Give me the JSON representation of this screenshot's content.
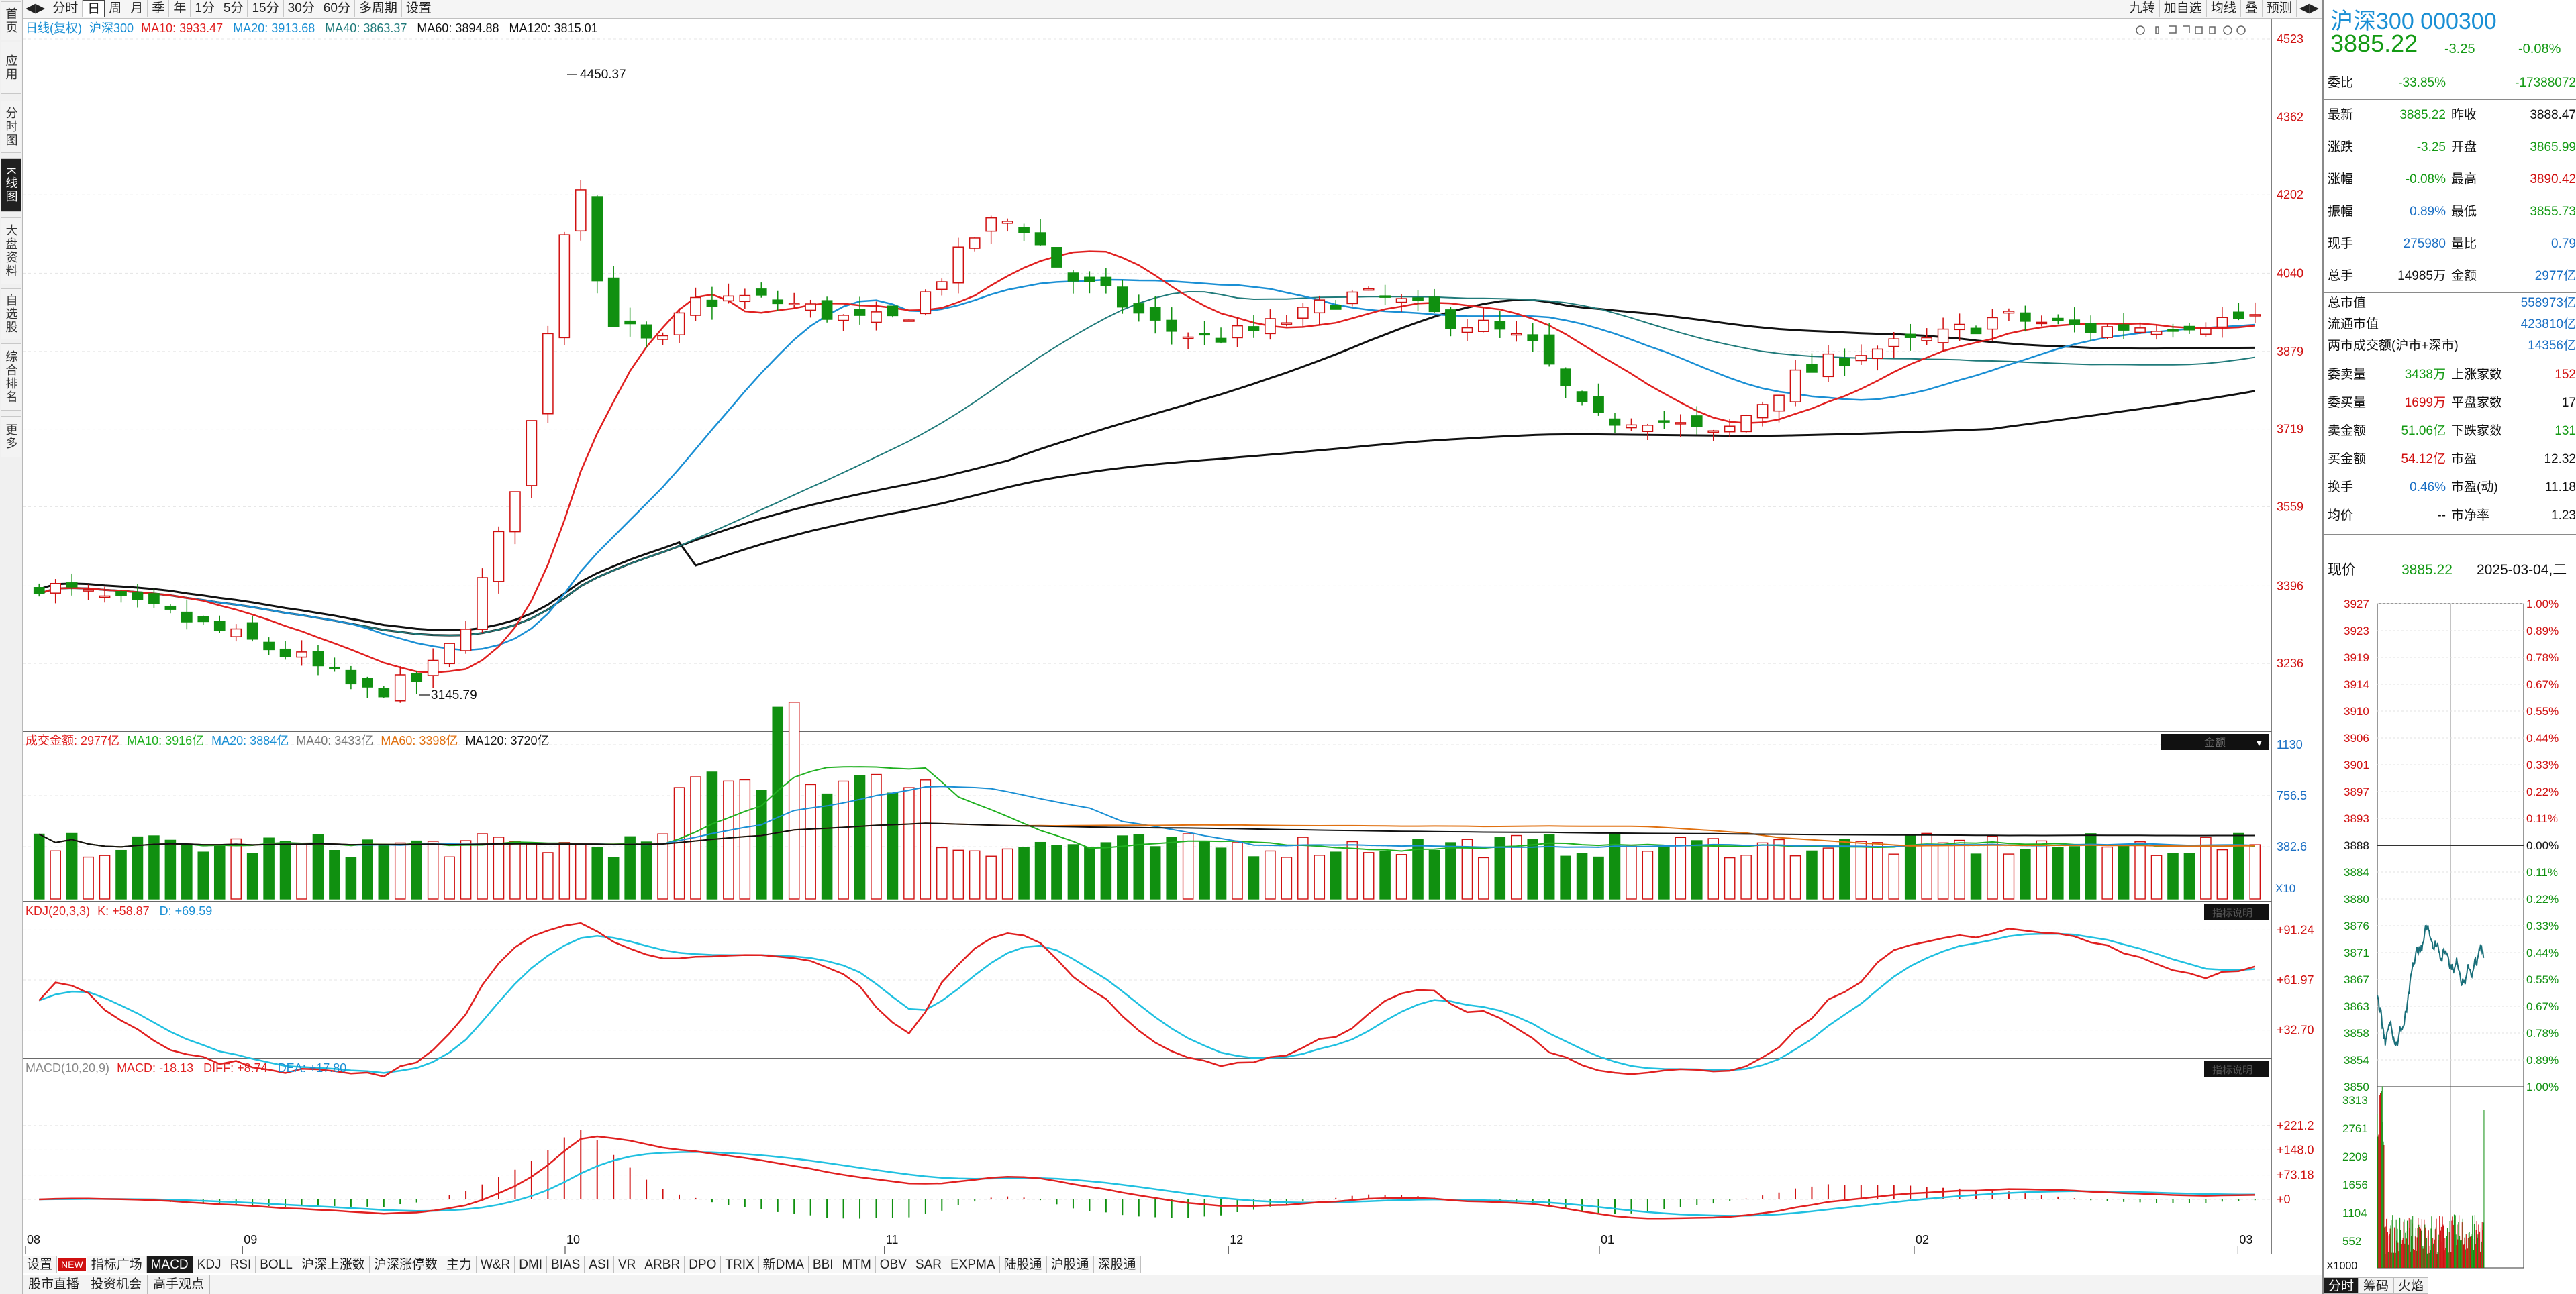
{
  "side_tabs": [
    "首页",
    "应用",
    "分时图",
    "K线图",
    "大盘资料",
    "自选股",
    "综合排名",
    "更多"
  ],
  "toolbar": {
    "items": [
      "分时",
      "日",
      "周",
      "月",
      "季",
      "年",
      "1分",
      "5分",
      "15分",
      "30分",
      "60分",
      "多周期",
      "设置"
    ],
    "active": "日",
    "right": [
      "九转",
      "加自选",
      "均线",
      "叠",
      "预测"
    ]
  },
  "main_chart": {
    "legend_label": "日线(复权)",
    "symbol": "沪深300",
    "ma10": "MA10: 3933.47",
    "ma20": "MA20: 3913.68",
    "ma40": "MA40: 3863.37",
    "ma60": "MA60: 3894.88",
    "ma120": "MA120: 3815.01",
    "high_label": "4450.37",
    "low_label": "3145.79",
    "y_ticks": [
      "4523",
      "4362",
      "4202",
      "4040",
      "3879",
      "3719",
      "3559",
      "3396",
      "3236"
    ],
    "x_labels": [
      "08",
      "09",
      "10",
      "11",
      "12",
      "01",
      "02",
      "03"
    ],
    "colors": {
      "up": "#d01010",
      "down": "#109010",
      "ma10": "#e02020",
      "ma20": "#1a8fd4",
      "ma40": "#207a7a",
      "ma60": "#111111",
      "ma120": "#111111"
    }
  },
  "volume_panel": {
    "label": "成交金额: 2977亿",
    "ma10": "MA10: 3916亿",
    "ma20": "MA20: 3884亿",
    "ma40": "MA40: 3433亿",
    "ma60": "MA60: 3398亿",
    "ma120": "MA120: 3720亿",
    "selector": "金额",
    "y_ticks": [
      "1130",
      "756.5",
      "382.6"
    ],
    "unit": "X10"
  },
  "kdj_panel": {
    "label": "KDJ(20,3,3)",
    "k": "K: +58.87",
    "d": "D: +69.59",
    "y_ticks": [
      "+91.24",
      "+61.97",
      "+32.70"
    ],
    "button": "指标说明"
  },
  "macd_panel": {
    "label": "MACD(10,20,9)",
    "macd": "MACD: -18.13",
    "diff": "DIFF: +8.74",
    "dea": "DEA: +17.80",
    "y_ticks": [
      "+221.2",
      "+148.0",
      "+73.18",
      "+0"
    ],
    "button": "指标说明"
  },
  "indicator_tabs": [
    "设置",
    "NEW",
    "指标广场",
    "MACD",
    "KDJ",
    "RSI",
    "BOLL",
    "沪深上涨数",
    "沪深涨停数",
    "主力",
    "W&R",
    "DMI",
    "BIAS",
    "ASI",
    "VR",
    "ARBR",
    "DPO",
    "TRIX",
    "新DMA",
    "BBI",
    "MTM",
    "OBV",
    "SAR",
    "EXPMA",
    "陆股通",
    "沪股通",
    "深股通"
  ],
  "indicator_active": "MACD",
  "status_bar": [
    "股市直播",
    "投资机会",
    "高手观点"
  ],
  "quote": {
    "name": "沪深300 000300",
    "price": "3885.22",
    "change": "-3.25",
    "pct": "-0.08%",
    "rows": [
      {
        "l1": "委比",
        "v1": "-33.85%",
        "c1": "gr",
        "l2": "",
        "v2": "-17388072",
        "c2": "gr"
      },
      {
        "l1": "最新",
        "v1": "3885.22",
        "c1": "gr",
        "l2": "昨收",
        "v2": "3888.47",
        "c2": "bk"
      },
      {
        "l1": "涨跌",
        "v1": "-3.25",
        "c1": "gr",
        "l2": "开盘",
        "v2": "3865.99",
        "c2": "gr"
      },
      {
        "l1": "涨幅",
        "v1": "-0.08%",
        "c1": "gr",
        "l2": "最高",
        "v2": "3890.42",
        "c2": "rd"
      },
      {
        "l1": "振幅",
        "v1": "0.89%",
        "c1": "bl",
        "l2": "最低",
        "v2": "3855.73",
        "c2": "gr"
      },
      {
        "l1": "现手",
        "v1": "275980",
        "c1": "bl",
        "l2": "量比",
        "v2": "0.79",
        "c2": "bl"
      },
      {
        "l1": "总手",
        "v1": "14985万",
        "c1": "bk",
        "l2": "金额",
        "v2": "2977亿",
        "c2": "bl"
      }
    ],
    "rows_b": [
      {
        "l": "总市值",
        "v": "558973亿"
      },
      {
        "l": "流通市值",
        "v": "423810亿"
      },
      {
        "l": "两市成交额(沪市+深市)",
        "v": "14356亿"
      }
    ],
    "rows_c": [
      {
        "l1": "委卖量",
        "v1": "3438万",
        "c1": "gr",
        "l2": "上涨家数",
        "v2": "152",
        "c2": "rd"
      },
      {
        "l1": "委买量",
        "v1": "1699万",
        "c1": "rd",
        "l2": "平盘家数",
        "v2": "17",
        "c2": "bk"
      },
      {
        "l1": "卖金额",
        "v1": "51.06亿",
        "c1": "gr",
        "l2": "下跌家数",
        "v2": "131",
        "c2": "gr"
      },
      {
        "l1": "买金额",
        "v1": "54.12亿",
        "c1": "rd",
        "l2": "市盈",
        "v2": "12.32",
        "c2": "bk"
      },
      {
        "l1": "换手",
        "v1": "0.46%",
        "c1": "bl",
        "l2": "市盈(动)",
        "v2": "11.18",
        "c2": "bk"
      },
      {
        "l1": "均价",
        "v1": "--",
        "c1": "bk",
        "l2": "市净率",
        "v2": "1.23",
        "c2": "bk"
      }
    ],
    "now_label": "现价",
    "now_value": "3885.22",
    "date": "2025-03-04,二"
  },
  "mini_chart": {
    "price_ticks": [
      "3927",
      "3923",
      "3919",
      "3914",
      "3910",
      "3906",
      "3901",
      "3897",
      "3893",
      "3888",
      "3884",
      "3880",
      "3876",
      "3871",
      "3867",
      "3863",
      "3858",
      "3854",
      "3850"
    ],
    "pct_ticks": [
      "1.00%",
      "0.89%",
      "0.78%",
      "0.67%",
      "0.55%",
      "0.44%",
      "0.33%",
      "0.22%",
      "0.11%",
      "0.00%",
      "0.11%",
      "0.22%",
      "0.33%",
      "0.44%",
      "0.55%",
      "0.67%",
      "0.78%",
      "0.89%",
      "1.00%"
    ],
    "vol_ticks": [
      "3313",
      "2761",
      "2209",
      "1656",
      "1104",
      "552"
    ],
    "vol_unit": "X1000"
  },
  "mini_tabs": [
    "分时",
    "筹码",
    "火焰"
  ],
  "mini_active": "分时"
}
